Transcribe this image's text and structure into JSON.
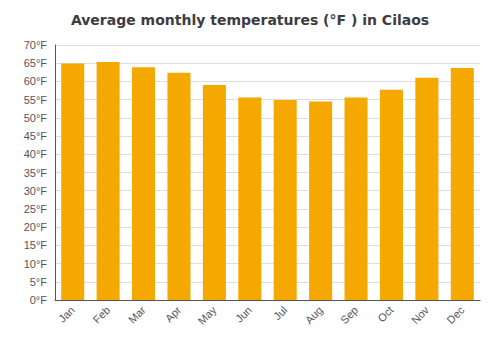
{
  "chart_data": {
    "type": "bar",
    "title": "Average monthly temperatures (°F ) in Cilaos",
    "categories": [
      "Jan",
      "Feb",
      "Mar",
      "Apr",
      "May",
      "Jun",
      "Jul",
      "Aug",
      "Sep",
      "Oct",
      "Nov",
      "Dec"
    ],
    "values": [
      64.9,
      65.3,
      63.9,
      62.4,
      59.0,
      55.6,
      54.9,
      54.5,
      55.6,
      57.7,
      61.0,
      63.7
    ],
    "color": "#F5A800",
    "ylim": [
      0,
      70
    ],
    "yticks": [
      {
        "value": 0,
        "label": "0°F"
      },
      {
        "value": 5,
        "label": "5°F"
      },
      {
        "value": 10,
        "label": "10°F"
      },
      {
        "value": 15,
        "label": "15°F"
      },
      {
        "value": 20,
        "label": "20°F"
      },
      {
        "value": 25,
        "label": "25°F"
      },
      {
        "value": 30,
        "label": "30°F"
      },
      {
        "value": 35,
        "label": "35°F"
      },
      {
        "value": 40,
        "label": "40°F"
      },
      {
        "value": 45,
        "label": "45°F"
      },
      {
        "value": 50,
        "label": "50°F"
      },
      {
        "value": 55,
        "label": "55°F"
      },
      {
        "value": 60,
        "label": "60°F"
      },
      {
        "value": 65,
        "label": "65°F"
      },
      {
        "value": 70,
        "label": "70°F"
      }
    ],
    "grid": true
  }
}
